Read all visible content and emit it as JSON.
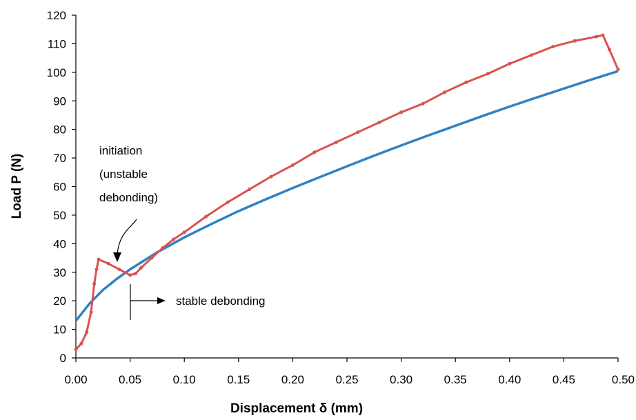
{
  "chart_data": {
    "type": "line",
    "xlabel": "Displacement   δ (mm)",
    "ylabel": "Load  P  (N)",
    "xlim": [
      0,
      0.5
    ],
    "ylim": [
      0,
      120
    ],
    "x_ticks": [
      "0.00",
      "0.05",
      "0.10",
      "0.15",
      "0.20",
      "0.25",
      "0.30",
      "0.35",
      "0.40",
      "0.45",
      "0.50"
    ],
    "y_ticks": [
      "0",
      "10",
      "20",
      "30",
      "40",
      "50",
      "60",
      "70",
      "80",
      "90",
      "100",
      "110",
      "120"
    ],
    "grid": false,
    "legend": "none",
    "colors": {
      "experiment": "#d9534f",
      "fit": "#2f82c4"
    },
    "series": [
      {
        "x": [
          0.0,
          0.005,
          0.01,
          0.014,
          0.017,
          0.019,
          0.021,
          0.03,
          0.04,
          0.05,
          0.055,
          0.06,
          0.07,
          0.08,
          0.09,
          0.1,
          0.12,
          0.14,
          0.16,
          0.18,
          0.2,
          0.22,
          0.24,
          0.26,
          0.28,
          0.3,
          0.32,
          0.34,
          0.36,
          0.38,
          0.4,
          0.42,
          0.44,
          0.46,
          0.48,
          0.486,
          0.492,
          0.5
        ],
        "y": [
          3,
          5,
          9,
          16,
          26,
          31,
          34.5,
          33,
          31,
          29,
          29.5,
          31.5,
          35,
          38.5,
          41.5,
          44,
          49.5,
          54.5,
          59,
          63.5,
          67.5,
          72,
          75.5,
          79,
          82.5,
          86,
          89,
          93,
          96.5,
          99.5,
          103,
          106,
          109,
          111,
          112.5,
          113,
          108,
          101
        ]
      },
      {
        "x": [
          0,
          0.0125,
          0.025,
          0.0375,
          0.05,
          0.075,
          0.1,
          0.125,
          0.15,
          0.175,
          0.2,
          0.225,
          0.25,
          0.275,
          0.3,
          0.325,
          0.35,
          0.375,
          0.4,
          0.425,
          0.45,
          0.475,
          0.5
        ],
        "y": [
          13,
          19,
          23.8,
          27.6,
          31,
          37,
          42.2,
          46.9,
          51.4,
          55.5,
          59.5,
          63.3,
          67.1,
          70.8,
          74.4,
          77.9,
          81.3,
          84.7,
          88,
          91.2,
          94.3,
          97.4,
          100.4
        ]
      }
    ],
    "annotations": {
      "initiation_line1": "initiation",
      "initiation_line2": "(unstable",
      "initiation_line3": "debonding)",
      "stable": "stable debonding"
    }
  }
}
